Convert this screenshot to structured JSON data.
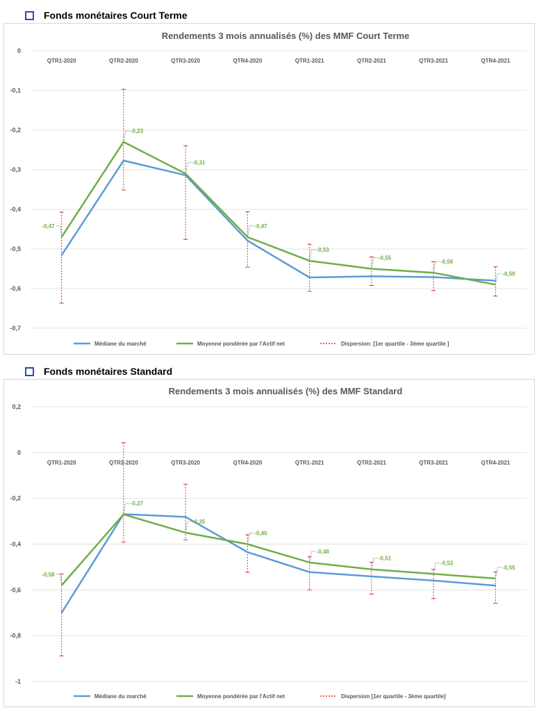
{
  "sections": [
    {
      "title": "Fonds monétaires Court Terme"
    },
    {
      "title": "Fonds monétaires Standard"
    }
  ],
  "colors": {
    "median": "#5b9bd5",
    "mean": "#70ad47",
    "dispersion": "#e8292b",
    "grid": "#e3e3e3",
    "text": "#595959"
  },
  "chart_data": [
    {
      "type": "line",
      "title": "Rendements 3 mois annualisés (%) des MMF Court Terme",
      "categories": [
        "QTR1-2020",
        "QTR2-2020",
        "QTR3-2020",
        "QTR4-2020",
        "QTR1-2021",
        "QTR2-2021",
        "QTR3-2021",
        "QTR4-2021"
      ],
      "ylim": [
        -0.7,
        0
      ],
      "yticks": [
        0,
        -0.1,
        -0.2,
        -0.3,
        -0.4,
        -0.5,
        -0.6,
        -0.7
      ],
      "ytick_labels": [
        "0",
        "-0,1",
        "-0,2",
        "-0,3",
        "-0,4",
        "-0,5",
        "-0,6",
        "-0,7"
      ],
      "grid": true,
      "legend": "bottom",
      "series": [
        {
          "name": "Médiane du marché",
          "values": [
            -0.516,
            -0.277,
            -0.314,
            -0.479,
            -0.572,
            -0.569,
            -0.571,
            -0.58
          ]
        },
        {
          "name": "Moyenne pondérée par l'Actif net",
          "values": [
            -0.47,
            -0.23,
            -0.31,
            -0.47,
            -0.53,
            -0.55,
            -0.56,
            -0.59
          ],
          "labels": [
            "-0,47",
            "-0,23",
            "-0,31",
            "-0,47",
            "-0,53",
            "-0,55",
            "-0,56",
            "-0,59"
          ]
        }
      ],
      "dispersion": {
        "name": "Dispersion: [1er quartile - 3ème quartile ]",
        "low": [
          -0.637,
          -0.351,
          -0.476,
          -0.546,
          -0.607,
          -0.592,
          -0.605,
          -0.619
        ],
        "high": [
          -0.407,
          -0.097,
          -0.24,
          -0.406,
          -0.488,
          -0.52,
          -0.532,
          -0.545
        ]
      }
    },
    {
      "type": "line",
      "title": "Rendements 3 mois annualisés (%) des MMF Standard",
      "categories": [
        "QTR1-2020",
        "QTR2-2020",
        "QTR3-2020",
        "QTR4-2020",
        "QTR1-2021",
        "QTR2-2021",
        "QTR3-2021",
        "QTR4-2021"
      ],
      "ylim": [
        -1,
        0.2
      ],
      "yticks": [
        0.2,
        0,
        -0.2,
        -0.4,
        -0.6,
        -0.8,
        -1
      ],
      "ytick_labels": [
        "0,2",
        "0",
        "-0,2",
        "-0,4",
        "-0,6",
        "-0,8",
        "-1"
      ],
      "grid": true,
      "legend": "bottom",
      "series": [
        {
          "name": "Médiane du marché",
          "values": [
            -0.7,
            -0.269,
            -0.281,
            -0.435,
            -0.522,
            -0.541,
            -0.559,
            -0.581
          ]
        },
        {
          "name": "Moyenne pondérée par l'Actif net",
          "values": [
            -0.58,
            -0.27,
            -0.35,
            -0.4,
            -0.48,
            -0.51,
            -0.53,
            -0.55
          ],
          "labels": [
            "-0,58",
            "-0,27",
            "-0,35",
            "-0,40",
            "-0,48",
            "-0,51",
            "-0,53",
            "-0,55"
          ]
        }
      ],
      "dispersion": {
        "name": "Dispersion [1er quartile - 3ème quartile]",
        "low": [
          -0.888,
          -0.392,
          -0.381,
          -0.523,
          -0.6,
          -0.618,
          -0.638,
          -0.658
        ],
        "high": [
          -0.53,
          0.043,
          -0.138,
          -0.359,
          -0.455,
          -0.479,
          -0.51,
          -0.521
        ]
      }
    }
  ]
}
